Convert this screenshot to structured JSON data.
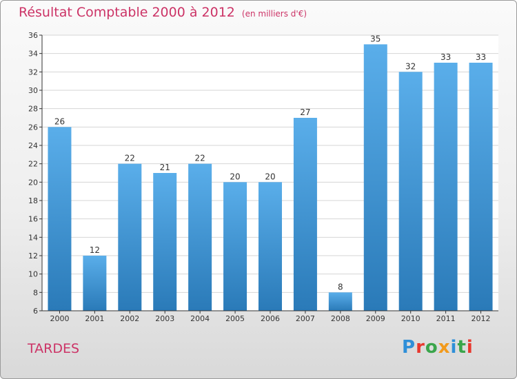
{
  "title": "Résultat Comptable 2000 à 2012",
  "subtitle": "(en milliers d'€)",
  "commune": "TARDES",
  "logo": {
    "text": "Proxiti",
    "letters": [
      {
        "char": "P",
        "color": "#2f8fd8"
      },
      {
        "char": "r",
        "color": "#e8382e"
      },
      {
        "char": "o",
        "color": "#3aa54b"
      },
      {
        "char": "x",
        "color": "#f29a1c"
      },
      {
        "char": "i",
        "color": "#2f8fd8"
      },
      {
        "char": "t",
        "color": "#3aa54b"
      },
      {
        "char": "i",
        "color": "#e8382e"
      }
    ]
  },
  "colors": {
    "title": "#cc3366",
    "bar_top": "#5aaeea",
    "bar_bottom": "#2a7ab8",
    "axis": "#333333",
    "grid": "#d4d4d4"
  },
  "chart_data": {
    "type": "bar",
    "title": "Résultat Comptable 2000 à 2012",
    "xlabel": "",
    "ylabel": "(en milliers d'€)",
    "categories": [
      "2000",
      "2001",
      "2002",
      "2003",
      "2004",
      "2005",
      "2006",
      "2007",
      "2008",
      "2009",
      "2010",
      "2011",
      "2012"
    ],
    "values": [
      26,
      12,
      22,
      21,
      22,
      20,
      20,
      27,
      8,
      35,
      32,
      33,
      33
    ],
    "ylim": [
      6,
      36
    ],
    "yticks": [
      6,
      8,
      10,
      12,
      14,
      16,
      18,
      20,
      22,
      24,
      26,
      28,
      30,
      32,
      34,
      36
    ],
    "grid": true
  }
}
